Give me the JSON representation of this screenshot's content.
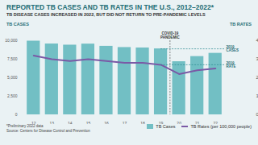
{
  "chart_data": {
    "type": "bar",
    "title": "REPORTED TB CASES AND TB RATES IN THE U.S., 2012–2022*",
    "subtitle": "TB DISEASE CASES INCREASED IN 2022, BUT DID NOT RETURN TO PRE-PANDEMIC LEVELS",
    "y_label": "TB CASES",
    "y2_label": "TB RATES",
    "categories": [
      "12",
      "13",
      "14",
      "15",
      "16",
      "17",
      "18",
      "19",
      "20",
      "21",
      "22"
    ],
    "series": [
      {
        "name": "TB Cases",
        "type": "bar",
        "color": "#72bfc4",
        "values": [
          9945,
          9561,
          9406,
          9547,
          9250,
          9082,
          9025,
          8900,
          7170,
          7866,
          8300
        ]
      },
      {
        "name": "TB Rates (per 100,000 people)",
        "type": "line",
        "axis": "y2",
        "color": "#7a5aa6",
        "values": [
          3.2,
          3.0,
          2.9,
          3.0,
          2.9,
          2.8,
          2.8,
          2.7,
          2.2,
          2.4,
          2.5
        ]
      }
    ],
    "ylim": [
      0,
      10000
    ],
    "yticks": [
      0,
      {
        "value": 2500,
        "label": "2,500"
      },
      {
        "value": 5000,
        "label": "5,000"
      },
      {
        "value": 7500,
        "label": "7,500"
      },
      {
        "value": 10000,
        "label": "10,000"
      }
    ],
    "y2lim": [
      0,
      4
    ],
    "y2ticks": [
      0,
      1,
      2,
      3,
      4
    ],
    "grid": false,
    "annotations": [
      {
        "text": "COVID-19 PANDEMIC",
        "x": "20"
      },
      {
        "text": "2019 CASES",
        "x": "19",
        "series": "TB Cases"
      },
      {
        "text": "2019 RATE",
        "x": "19",
        "series": "TB Rates (per 100,000 people)"
      }
    ],
    "notes": [
      "*Preliminary 2022 data",
      "Source: Centers for Disease Control and Prevention"
    ]
  }
}
